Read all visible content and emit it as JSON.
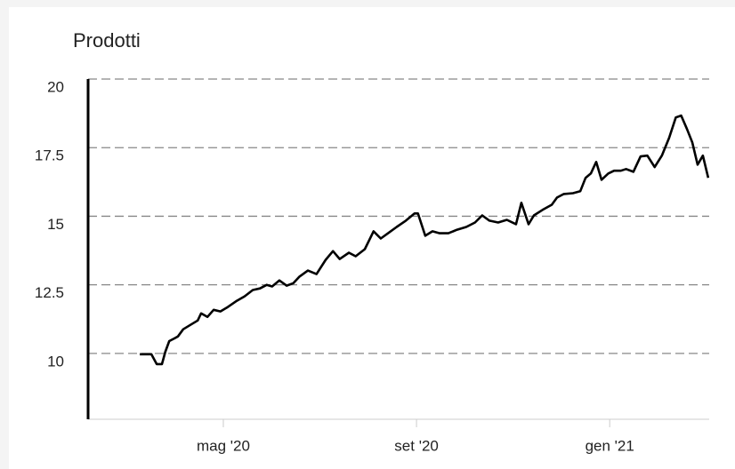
{
  "chart_data": {
    "type": "line",
    "title": "Prodotti",
    "color": "#000000",
    "grid": true,
    "ylim": [
      7.6,
      20
    ],
    "yticks": [
      10,
      12.5,
      15,
      17.5,
      20
    ],
    "xlim": [
      2.2,
      15.06
    ],
    "xticks": [
      {
        "value": 5,
        "label": "mag '20"
      },
      {
        "value": 9,
        "label": "set '20"
      },
      {
        "value": 13,
        "label": "gen '21"
      }
    ],
    "x": [
      3.27,
      3.51,
      3.62,
      3.73,
      3.8,
      3.88,
      3.99,
      4.06,
      4.17,
      4.32,
      4.47,
      4.54,
      4.67,
      4.8,
      4.94,
      5.09,
      5.28,
      5.44,
      5.61,
      5.76,
      5.9,
      6.01,
      6.16,
      6.31,
      6.45,
      6.57,
      6.75,
      6.93,
      7.12,
      7.27,
      7.41,
      7.6,
      7.74,
      7.93,
      8.11,
      8.26,
      8.41,
      8.59,
      8.78,
      8.96,
      9.03,
      9.18,
      9.33,
      9.48,
      9.66,
      9.84,
      10.03,
      10.21,
      10.36,
      10.51,
      10.69,
      10.87,
      11.06,
      11.17,
      11.32,
      11.43,
      11.61,
      11.8,
      11.91,
      12.05,
      12.24,
      12.39,
      12.5,
      12.61,
      12.72,
      12.83,
      12.97,
      13.09,
      13.23,
      13.34,
      13.49,
      13.64,
      13.78,
      13.93,
      14.08,
      14.23,
      14.37,
      14.48,
      14.6,
      14.71,
      14.82,
      14.93,
      15.04
    ],
    "values": [
      9.97,
      9.97,
      9.61,
      9.61,
      10.06,
      10.45,
      10.55,
      10.62,
      10.88,
      11.04,
      11.2,
      11.46,
      11.33,
      11.59,
      11.53,
      11.69,
      11.92,
      12.08,
      12.31,
      12.37,
      12.5,
      12.44,
      12.66,
      12.47,
      12.56,
      12.79,
      13.02,
      12.89,
      13.41,
      13.73,
      13.44,
      13.67,
      13.54,
      13.8,
      14.45,
      14.19,
      14.38,
      14.61,
      14.84,
      15.1,
      15.1,
      14.29,
      14.45,
      14.38,
      14.38,
      14.51,
      14.61,
      14.77,
      15.03,
      14.84,
      14.77,
      14.87,
      14.71,
      15.49,
      14.71,
      15.03,
      15.23,
      15.42,
      15.68,
      15.81,
      15.84,
      15.91,
      16.4,
      16.56,
      16.98,
      16.33,
      16.56,
      16.66,
      16.66,
      16.72,
      16.62,
      17.18,
      17.21,
      16.79,
      17.21,
      17.86,
      18.6,
      18.67,
      18.18,
      17.69,
      16.88,
      17.21,
      16.4
    ]
  }
}
